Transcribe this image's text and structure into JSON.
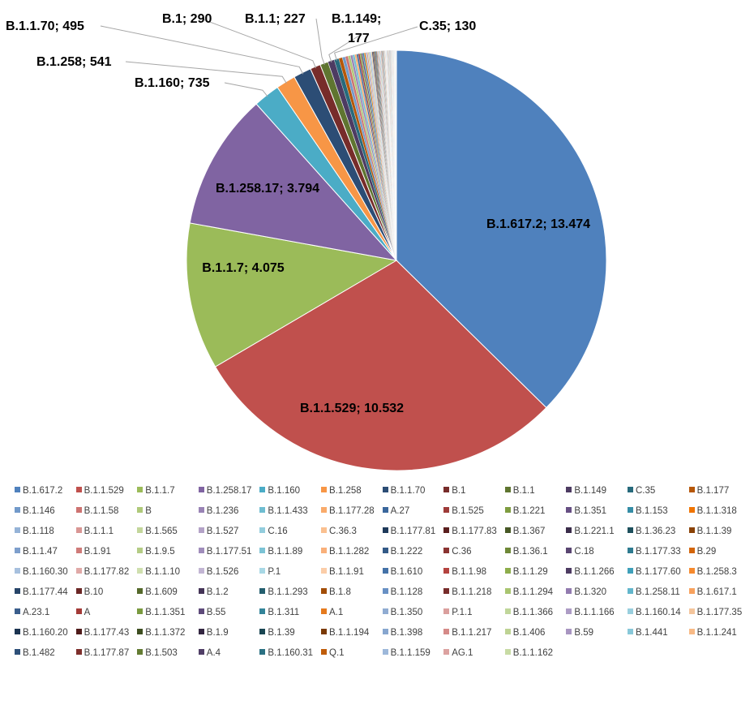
{
  "chart_data": {
    "type": "pie",
    "series": [
      {
        "name": "B.1.617.2",
        "value": 13474,
        "label": "B.1.617.2; 13.474",
        "color": "#4F81BD"
      },
      {
        "name": "B.1.1.529",
        "value": 10532,
        "label": "B.1.1.529; 10.532",
        "color": "#C0504D"
      },
      {
        "name": "B.1.1.7",
        "value": 4075,
        "label": "B.1.1.7; 4.075",
        "color": "#9BBB59"
      },
      {
        "name": "B.1.258.17",
        "value": 3794,
        "label": "B.1.258.17; 3.794",
        "color": "#8064A2"
      },
      {
        "name": "B.1.160",
        "value": 735,
        "label": "B.1.160; 735",
        "color": "#4BACC6"
      },
      {
        "name": "B.1.258",
        "value": 541,
        "label": "B.1.258; 541",
        "color": "#F79646"
      },
      {
        "name": "B.1.1.70",
        "value": 495,
        "label": "B.1.1.70; 495",
        "color": "#2C4D75"
      },
      {
        "name": "B.1",
        "value": 290,
        "label": "B.1; 290",
        "color": "#772C2A"
      },
      {
        "name": "B.1.1",
        "value": 227,
        "label": "B.1.1; 227",
        "color": "#5F7530"
      },
      {
        "name": "B.1.149",
        "value": 177,
        "label": "B.1.149; 177",
        "color": "#4D3B62"
      },
      {
        "name": "C.35",
        "value": 130,
        "label": "C.35; 130",
        "color": "#276A7C"
      },
      {
        "name": "B.1.177",
        "value": 100,
        "color": "#B65708"
      },
      {
        "name": "B.1.146",
        "value": 85,
        "color": "#729ACA"
      },
      {
        "name": "B.1.1.58",
        "value": 75,
        "color": "#CD7371"
      },
      {
        "name": "B",
        "value": 68,
        "color": "#AFC97A"
      },
      {
        "name": "B.1.236",
        "value": 62,
        "color": "#9983B5"
      },
      {
        "name": "B.1.1.433",
        "value": 57,
        "color": "#6FBDD1"
      },
      {
        "name": "B.1.177.28",
        "value": 52,
        "color": "#F9AB6B"
      },
      {
        "name": "A.27",
        "value": 48,
        "color": "#3A679C"
      },
      {
        "name": "B.1.525",
        "value": 45,
        "color": "#9E3B38"
      },
      {
        "name": "B.1.221",
        "value": 42,
        "color": "#7E9C40"
      },
      {
        "name": "B.1.351",
        "value": 40,
        "color": "#664F83"
      },
      {
        "name": "B.1.153",
        "value": 38,
        "color": "#358DA6"
      },
      {
        "name": "B.1.1.318",
        "value": 36,
        "color": "#F07400"
      },
      {
        "name": "B.1.118",
        "value": 34,
        "color": "#95B3D7"
      },
      {
        "name": "B.1.1.1",
        "value": 32,
        "color": "#D99694"
      },
      {
        "name": "B.1.565",
        "value": 30,
        "color": "#C3D69B"
      },
      {
        "name": "B.1.527",
        "value": 29,
        "color": "#B3A2C7"
      },
      {
        "name": "C.16",
        "value": 28,
        "color": "#93CDDD"
      },
      {
        "name": "C.36.3",
        "value": 27,
        "color": "#FAC090"
      },
      {
        "name": "B.1.177.81",
        "value": 26,
        "color": "#1F3A5A"
      },
      {
        "name": "B.1.177.83",
        "value": 25,
        "color": "#5A1F1E"
      },
      {
        "name": "B.1.367",
        "value": 24,
        "color": "#475825"
      },
      {
        "name": "B.1.221.1",
        "value": 23,
        "color": "#3A2C4A"
      },
      {
        "name": "B.1.36.23",
        "value": 22,
        "color": "#1E505D"
      },
      {
        "name": "B.1.1.39",
        "value": 21,
        "color": "#8A4206"
      },
      {
        "name": "B.1.1.47",
        "value": 20,
        "color": "#7E9FCC"
      },
      {
        "name": "B.1.91",
        "value": 19,
        "color": "#CF7B79"
      },
      {
        "name": "B.1.9.5",
        "value": 18,
        "color": "#B4CC85"
      },
      {
        "name": "B.1.177.51",
        "value": 18,
        "color": "#A08DBB"
      },
      {
        "name": "B.1.1.89",
        "value": 17,
        "color": "#7CC3D5"
      },
      {
        "name": "B.1.1.282",
        "value": 17,
        "color": "#F9B07A"
      },
      {
        "name": "B.1.222",
        "value": 16,
        "color": "#335A87"
      },
      {
        "name": "C.36",
        "value": 16,
        "color": "#8A3331"
      },
      {
        "name": "B.1.36.1",
        "value": 15,
        "color": "#6E8837"
      },
      {
        "name": "C.18",
        "value": 15,
        "color": "#594571"
      },
      {
        "name": "B.1.177.33",
        "value": 14,
        "color": "#2E7B90"
      },
      {
        "name": "B.29",
        "value": 14,
        "color": "#D3650A"
      },
      {
        "name": "B.1.160.30",
        "value": 13,
        "color": "#A7C0DE"
      },
      {
        "name": "B.1.177.82",
        "value": 13,
        "color": "#E0A9A7"
      },
      {
        "name": "B.1.1.10",
        "value": 12,
        "color": "#CFDFAE"
      },
      {
        "name": "B.1.526",
        "value": 12,
        "color": "#C2B5D3"
      },
      {
        "name": "P.1",
        "value": 12,
        "color": "#A8D8E5"
      },
      {
        "name": "B.1.1.91",
        "value": 11,
        "color": "#FBCDA8"
      },
      {
        "name": "B.1.610",
        "value": 11,
        "color": "#4472A8"
      },
      {
        "name": "B.1.1.98",
        "value": 11,
        "color": "#B4433F"
      },
      {
        "name": "B.1.1.29",
        "value": 10,
        "color": "#8DAD4B"
      },
      {
        "name": "B.1.1.266",
        "value": 10,
        "color": "#7359978"
      },
      {
        "name": "B.1.177.60",
        "value": 10,
        "color": "#3FA0BA"
      },
      {
        "name": "B.1.258.3",
        "value": 9,
        "color": "#F68A2E"
      },
      {
        "name": "B.1.177.44",
        "value": 9,
        "color": "#274468"
      },
      {
        "name": "B.10",
        "value": 9,
        "color": "#6B2725"
      },
      {
        "name": "B.1.609",
        "value": 8,
        "color": "#55692B"
      },
      {
        "name": "B.1.2",
        "value": 8,
        "color": "#443457"
      },
      {
        "name": "B.1.1.293",
        "value": 8,
        "color": "#235E6E"
      },
      {
        "name": "B.1.8",
        "value": 8,
        "color": "#A24D07"
      },
      {
        "name": "B.1.128",
        "value": 7,
        "color": "#6890C4"
      },
      {
        "name": "B.1.1.218",
        "value": 7,
        "color": "#C8696"
      },
      {
        "name": "B.1.1.294",
        "value": 7,
        "color": "#A9C570"
      },
      {
        "name": "B.1.320",
        "value": 7,
        "color": "#927BAF"
      },
      {
        "name": "B.1.258.11",
        "value": 7,
        "color": "#62B6CC"
      },
      {
        "name": "B.1.617.1",
        "value": 6,
        "color": "#F8A25E"
      },
      {
        "name": "A.23.1",
        "value": 6,
        "color": "#3B5E8C"
      },
      {
        "name": "A",
        "value": 6,
        "color": "#A33A37"
      },
      {
        "name": "B.1.1.351",
        "value": 6,
        "color": "#7A9A3F"
      },
      {
        "name": "B.55",
        "value": 6,
        "color": "#5E4A7A"
      },
      {
        "name": "B.1.311",
        "value": 5,
        "color": "#338499"
      },
      {
        "name": "A.1",
        "value": 5,
        "color": "#E57A1E"
      },
      {
        "name": "B.1.350",
        "value": 5,
        "color": "#90ACD2"
      },
      {
        "name": "P.1.1",
        "value": 5,
        "color": "#DA9F9D"
      },
      {
        "name": "B.1.1.366",
        "value": 5,
        "color": "#C0D69A"
      },
      {
        "name": "B.1.1.166",
        "value": 4,
        "color": "#AD9CC5"
      },
      {
        "name": "B.1.160.14",
        "value": 4,
        "color": "#99CFDE"
      },
      {
        "name": "B.1.177.35",
        "value": 4,
        "color": "#F4C59C"
      },
      {
        "name": "B.1.160.20",
        "value": 4,
        "color": "#1B3350"
      },
      {
        "name": "B.1.177.43",
        "value": 4,
        "color": "#4F1B1A"
      },
      {
        "name": "B.1.1.372",
        "value": 3,
        "color": "#3E4E20"
      },
      {
        "name": "B.1.9",
        "value": 3,
        "color": "#332641"
      },
      {
        "name": "B.1.39",
        "value": 3,
        "color": "#1A4652"
      },
      {
        "name": "B.1.1.194",
        "value": 3,
        "color": "#7A3A05"
      },
      {
        "name": "B.1.398",
        "value": 3,
        "color": "#87A6CF"
      },
      {
        "name": "B.1.1.217",
        "value": 3,
        "color": "#D58A88"
      },
      {
        "name": "B.1.406",
        "value": 2,
        "color": "#BED393"
      },
      {
        "name": "B.59",
        "value": 2,
        "color": "#A895C1"
      },
      {
        "name": "B.1.441",
        "value": 2,
        "color": "#88C8D9"
      },
      {
        "name": "B.1.1.241",
        "value": 2,
        "color": "#F8BA86"
      },
      {
        "name": "B.1.482",
        "value": 2,
        "color": "#2E5078"
      },
      {
        "name": "B.1.177.87",
        "value": 2,
        "color": "#7E2F2C"
      },
      {
        "name": "B.1.503",
        "value": 2,
        "color": "#647C33"
      },
      {
        "name": "A.4",
        "value": 1,
        "color": "#503E66"
      },
      {
        "name": "B.1.160.31",
        "value": 1,
        "color": "#2A7082"
      },
      {
        "name": "Q.1",
        "value": 1,
        "color": "#BF5C09"
      },
      {
        "name": "B.1.1.159",
        "value": 1,
        "color": "#9DB8DA"
      },
      {
        "name": "AG.1",
        "value": 1,
        "color": "#DCA2A0"
      },
      {
        "name": "B.1.1.162",
        "value": 1,
        "color": "#C8DBA4"
      }
    ],
    "legend_position": "bottom",
    "legend_columns": 12
  }
}
